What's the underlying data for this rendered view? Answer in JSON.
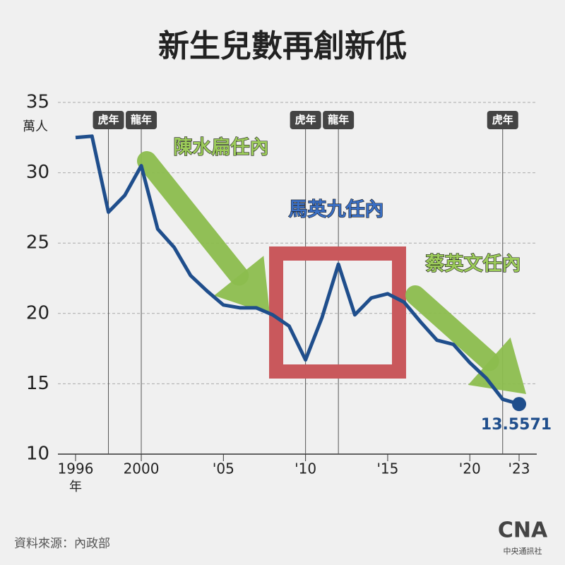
{
  "chart_data": {
    "type": "line",
    "title": "新生兒數再創新低",
    "y_unit": "萬人",
    "x_unit": "年",
    "x": [
      1996,
      1997,
      1998,
      1999,
      2000,
      2001,
      2002,
      2003,
      2004,
      2005,
      2006,
      2007,
      2008,
      2009,
      2010,
      2011,
      2012,
      2013,
      2014,
      2015,
      2016,
      2017,
      2018,
      2019,
      2020,
      2021,
      2022,
      2023
    ],
    "series": [
      {
        "color": "#1f4e8c",
        "values": [
          32.5,
          32.6,
          27.2,
          28.4,
          30.5,
          26.0,
          24.7,
          22.7,
          21.6,
          20.6,
          20.4,
          20.4,
          19.9,
          19.1,
          16.7,
          19.7,
          23.5,
          19.9,
          21.1,
          21.4,
          20.8,
          19.4,
          18.1,
          17.8,
          16.5,
          15.4,
          13.9,
          13.5571
        ]
      }
    ],
    "xlim": [
      1996,
      2023
    ],
    "ylim": [
      10,
      35
    ],
    "xticks": [
      1996,
      2000,
      {
        "value": 2005,
        "label": "'05"
      },
      {
        "value": 2010,
        "label": "'10"
      },
      {
        "value": 2015,
        "label": "'15"
      },
      {
        "value": 2020,
        "label": "'20"
      },
      {
        "value": 2023,
        "label": "'23"
      }
    ],
    "yticks": [
      10,
      15,
      20,
      25,
      30,
      35
    ],
    "grid": true,
    "markers": [
      {
        "x": 1998,
        "label": "虎年"
      },
      {
        "x": 2000,
        "label": "龍年"
      },
      {
        "x": 2010,
        "label": "虎年"
      },
      {
        "x": 2012,
        "label": "龍年"
      },
      {
        "x": 2022,
        "label": "虎年"
      }
    ],
    "annotations": [
      "陳水扁任內",
      "馬英九任內",
      "蔡英文任內"
    ],
    "source": "資料來源：內政部",
    "logo": {
      "name": "CNA",
      "label": "中央通訊社"
    }
  }
}
